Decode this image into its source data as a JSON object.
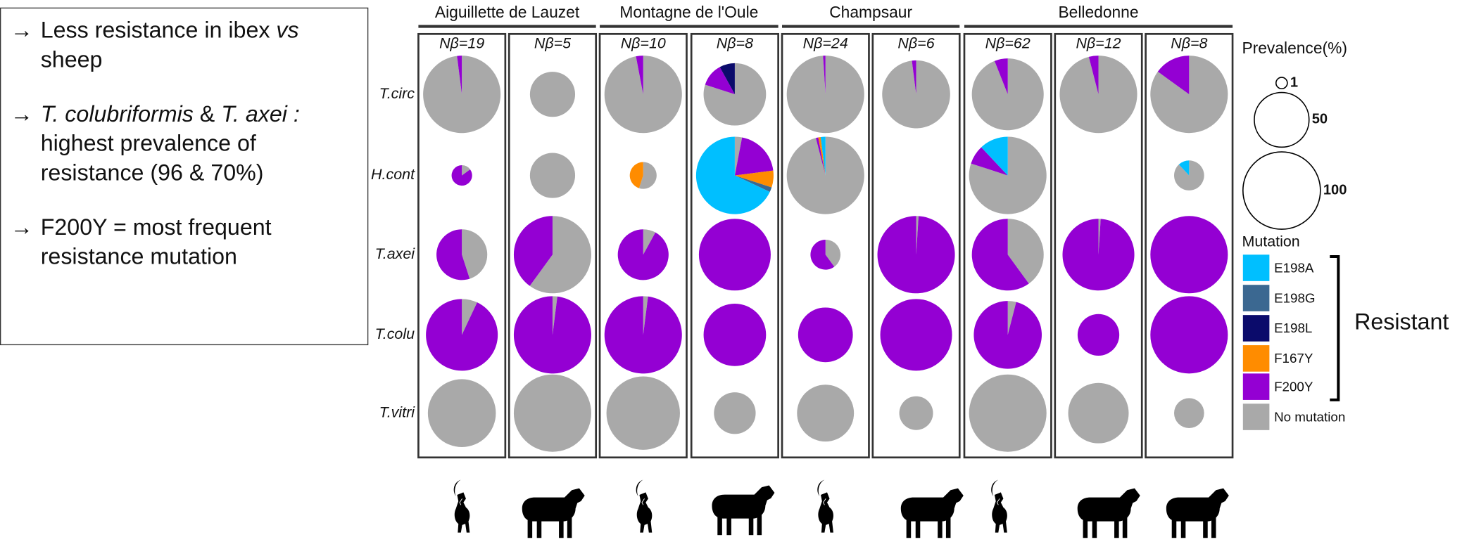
{
  "notes": [
    {
      "bullet": "→",
      "parts": [
        {
          "text": "Less resistance in ibex "
        },
        {
          "text": "vs",
          "italic": true
        },
        {
          "text": " sheep"
        }
      ]
    },
    {
      "bullet": "→",
      "parts": [
        {
          "text": "T. colubriformis",
          "italic": true
        },
        {
          "text": " & "
        },
        {
          "text": "T. axei :",
          "italic": true
        },
        {
          "text": " highest prevalence of resistance (96 & 70%)"
        }
      ]
    },
    {
      "bullet": "→",
      "parts": [
        {
          "text": "F200Y = most frequent resistance mutation"
        }
      ]
    }
  ],
  "regions": [
    "Aiguillette de Lauzet",
    "Montagne de l'Oule",
    "Champsaur",
    "Belledonne"
  ],
  "columns": [
    "Nβ=19",
    "Nβ=5",
    "Nβ=10",
    "Nβ=8",
    "Nβ=24",
    "Nβ=6",
    "Nβ=62",
    "Nβ=12",
    "Nβ=8"
  ],
  "species": [
    "T.circ",
    "H.cont",
    "T.axei",
    "T.colu",
    "T.vitri"
  ],
  "mutations": [
    {
      "name": "E198A",
      "color": "#00bfff"
    },
    {
      "name": "E198G",
      "color": "#3b6891"
    },
    {
      "name": "E198L",
      "color": "#0b0b6b"
    },
    {
      "name": "F167Y",
      "color": "#ff8c00"
    },
    {
      "name": "F200Y",
      "color": "#9400d3"
    },
    {
      "name": "No mutation",
      "color": "#a9a9a9"
    }
  ],
  "legend": {
    "prevalence_title": "Prevalence(%)",
    "prevalence_ticks": [
      1,
      50,
      100
    ],
    "mutation_title": "Mutation",
    "resistant": "Resistant"
  },
  "cells": [
    [
      {
        "size": 100,
        "slices": [
          0,
          0,
          0,
          0,
          2,
          98
        ]
      },
      {
        "size": 34,
        "slices": [
          0,
          0,
          0,
          0,
          0,
          100
        ]
      },
      {
        "size": 100,
        "slices": [
          0,
          0,
          0,
          0,
          3,
          97
        ]
      },
      {
        "size": 65,
        "slices": [
          0,
          0,
          8,
          0,
          12,
          80
        ]
      },
      {
        "size": 100,
        "slices": [
          0,
          0,
          0,
          0,
          1,
          99
        ]
      },
      {
        "size": 77,
        "slices": [
          0,
          0,
          0,
          0,
          2,
          98
        ]
      },
      {
        "size": 86,
        "slices": [
          0,
          0,
          0,
          0,
          6,
          94
        ]
      },
      {
        "size": 100,
        "slices": [
          0,
          0,
          0,
          0,
          4,
          96
        ]
      },
      {
        "size": 100,
        "slices": [
          0,
          0,
          0,
          0,
          15,
          85
        ]
      }
    ],
    [
      {
        "size": 7,
        "slices": [
          0,
          0,
          0,
          0,
          85,
          15
        ]
      },
      {
        "size": 34,
        "slices": [
          0,
          0,
          0,
          0,
          0,
          100
        ]
      },
      {
        "size": 12,
        "slices": [
          0,
          0,
          0,
          45,
          0,
          55
        ]
      },
      {
        "size": 100,
        "slices": [
          68,
          2,
          0,
          7,
          20,
          3
        ]
      },
      {
        "size": 100,
        "slices": [
          2,
          0,
          0,
          1,
          1,
          96
        ]
      },
      null,
      {
        "size": 100,
        "slices": [
          12,
          0,
          0,
          0,
          8,
          80
        ]
      },
      null,
      {
        "size": 15,
        "slices": [
          12,
          0,
          0,
          0,
          0,
          88
        ]
      }
    ],
    [
      {
        "size": 43,
        "slices": [
          0,
          0,
          0,
          0,
          55,
          45
        ]
      },
      {
        "size": 100,
        "slices": [
          0,
          0,
          0,
          0,
          40,
          60
        ]
      },
      {
        "size": 43,
        "slices": [
          0,
          0,
          0,
          0,
          92,
          8
        ]
      },
      {
        "size": 86,
        "slices": [
          0,
          0,
          0,
          0,
          100,
          0
        ]
      },
      {
        "size": 15,
        "slices": [
          0,
          0,
          0,
          0,
          60,
          40
        ]
      },
      {
        "size": 100,
        "slices": [
          0,
          0,
          0,
          0,
          99,
          1
        ]
      },
      {
        "size": 86,
        "slices": [
          0,
          0,
          0,
          0,
          60,
          40
        ]
      },
      {
        "size": 86,
        "slices": [
          0,
          0,
          0,
          0,
          99,
          1
        ]
      },
      {
        "size": 100,
        "slices": [
          0,
          0,
          0,
          0,
          100,
          0
        ]
      }
    ],
    [
      {
        "size": 86,
        "slices": [
          0,
          0,
          0,
          0,
          93,
          7
        ]
      },
      {
        "size": 100,
        "slices": [
          0,
          0,
          0,
          0,
          98,
          2
        ]
      },
      {
        "size": 100,
        "slices": [
          0,
          0,
          0,
          0,
          98,
          2
        ]
      },
      {
        "size": 65,
        "slices": [
          0,
          0,
          0,
          0,
          100,
          0
        ]
      },
      {
        "size": 50,
        "slices": [
          0,
          0,
          0,
          0,
          100,
          0
        ]
      },
      {
        "size": 86,
        "slices": [
          0,
          0,
          0,
          0,
          100,
          0
        ]
      },
      {
        "size": 77,
        "slices": [
          0,
          0,
          0,
          0,
          96,
          4
        ]
      },
      {
        "size": 29,
        "slices": [
          0,
          0,
          0,
          0,
          100,
          0
        ]
      },
      {
        "size": 100,
        "slices": [
          0,
          0,
          0,
          0,
          100,
          0
        ]
      }
    ],
    [
      {
        "size": 77,
        "slices": [
          0,
          0,
          0,
          0,
          0,
          100
        ]
      },
      {
        "size": 100,
        "slices": [
          0,
          0,
          0,
          0,
          0,
          100
        ]
      },
      {
        "size": 90,
        "slices": [
          0,
          0,
          0,
          0,
          0,
          100
        ]
      },
      {
        "size": 29,
        "slices": [
          0,
          0,
          0,
          0,
          0,
          100
        ]
      },
      {
        "size": 54,
        "slices": [
          0,
          0,
          0,
          0,
          0,
          100
        ]
      },
      {
        "size": 19,
        "slices": [
          0,
          0,
          0,
          0,
          0,
          100
        ]
      },
      {
        "size": 100,
        "slices": [
          0,
          0,
          0,
          0,
          0,
          100
        ]
      },
      {
        "size": 61,
        "slices": [
          0,
          0,
          0,
          0,
          0,
          100
        ]
      },
      {
        "size": 15,
        "slices": [
          0,
          0,
          0,
          0,
          0,
          100
        ]
      }
    ]
  ]
}
